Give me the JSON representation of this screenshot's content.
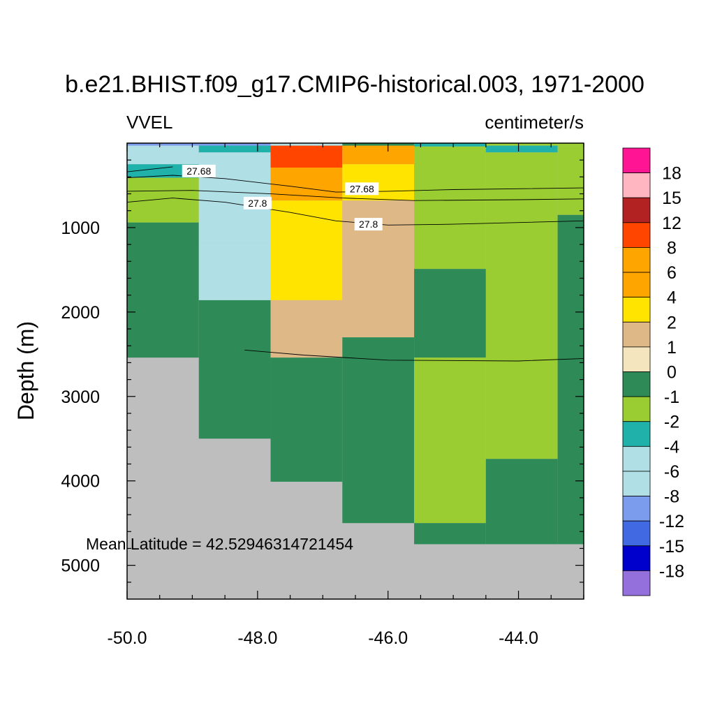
{
  "chart_data": {
    "type": "heatmap",
    "title": "b.e21.BHIST.f09_g17.CMIP6-historical.003, 1971-2000",
    "variable": "VVEL",
    "units": "centimeter/s",
    "xlabel": "",
    "ylabel": "Depth (m)",
    "xlim": [
      -50.0,
      -43.0
    ],
    "ylim": [
      0,
      5400
    ],
    "y_reversed": true,
    "xticks": [
      -50.0,
      -48.0,
      -46.0,
      -44.0
    ],
    "xtick_labels": [
      "-50.0",
      "-48.0",
      "-46.0",
      "-44.0"
    ],
    "yticks": [
      1000,
      2000,
      3000,
      4000,
      5000
    ],
    "ytick_labels": [
      "1000",
      "2000",
      "3000",
      "4000",
      "5000"
    ],
    "annotation": "Mean Latitude = 42.52946314721454",
    "missing_color": "#bebebe",
    "colorbar": {
      "labels": [
        "18",
        "15",
        "12",
        "8",
        "6",
        "4",
        "2",
        "1",
        "0",
        "-1",
        "-2",
        "-4",
        "-6",
        "-8",
        "-12",
        "-15",
        "-18"
      ],
      "colors": [
        "#ff1493",
        "#ffb6c1",
        "#b22222",
        "#ff4500",
        "#ffa500",
        "#ffa500",
        "#ffe400",
        "#deb887",
        "#f5e5be",
        "#2e8b57",
        "#9acd32",
        "#20b2aa",
        "#b0dfe6",
        "#b0dfe6",
        "#7b9ced",
        "#4169e1",
        "#0000cd",
        "#9370db"
      ]
    },
    "columns": [
      {
        "x0": -50.0,
        "x1": -48.9,
        "cells": [
          {
            "d0": 0,
            "d1": 30,
            "value": -8
          },
          {
            "d0": 30,
            "d1": 250,
            "value": -4
          },
          {
            "d0": 250,
            "d1": 410,
            "value": -2
          },
          {
            "d0": 410,
            "d1": 940,
            "value": -1
          },
          {
            "d0": 940,
            "d1": 2540,
            "value": 0
          }
        ]
      },
      {
        "x0": -48.9,
        "x1": -47.8,
        "cells": [
          {
            "d0": 0,
            "d1": 30,
            "value": -8
          },
          {
            "d0": 30,
            "d1": 110,
            "value": -2
          },
          {
            "d0": 110,
            "d1": 1180,
            "value": -6
          },
          {
            "d0": 1180,
            "d1": 1860,
            "value": -4
          },
          {
            "d0": 1860,
            "d1": 3500,
            "value": 0
          }
        ]
      },
      {
        "x0": -47.8,
        "x1": -46.7,
        "cells": [
          {
            "d0": 0,
            "d1": 30,
            "value": -4
          },
          {
            "d0": 30,
            "d1": 290,
            "value": 12
          },
          {
            "d0": 290,
            "d1": 680,
            "value": 8
          },
          {
            "d0": 680,
            "d1": 1860,
            "value": 4
          },
          {
            "d0": 1860,
            "d1": 2540,
            "value": 2
          },
          {
            "d0": 2540,
            "d1": 4010,
            "value": 0
          }
        ]
      },
      {
        "x0": -46.7,
        "x1": -45.6,
        "cells": [
          {
            "d0": 0,
            "d1": 30,
            "value": 0
          },
          {
            "d0": 30,
            "d1": 250,
            "value": 8
          },
          {
            "d0": 250,
            "d1": 680,
            "value": 4
          },
          {
            "d0": 680,
            "d1": 2300,
            "value": 2
          },
          {
            "d0": 2300,
            "d1": 4500,
            "value": 0
          }
        ]
      },
      {
        "x0": -45.6,
        "x1": -44.5,
        "cells": [
          {
            "d0": 0,
            "d1": 40,
            "value": -2
          },
          {
            "d0": 40,
            "d1": 1490,
            "value": -1
          },
          {
            "d0": 1490,
            "d1": 2540,
            "value": 0
          },
          {
            "d0": 2540,
            "d1": 4500,
            "value": -1
          },
          {
            "d0": 4500,
            "d1": 4750,
            "value": 0
          }
        ]
      },
      {
        "x0": -44.5,
        "x1": -43.4,
        "cells": [
          {
            "d0": 0,
            "d1": 30,
            "value": -1
          },
          {
            "d0": 30,
            "d1": 110,
            "value": -2
          },
          {
            "d0": 110,
            "d1": 3740,
            "value": -1
          },
          {
            "d0": 3740,
            "d1": 4750,
            "value": 0
          }
        ]
      },
      {
        "x0": -43.4,
        "x1": -43.0,
        "cells": [
          {
            "d0": 0,
            "d1": 30,
            "value": -1
          },
          {
            "d0": 30,
            "d1": 850,
            "value": -1
          },
          {
            "d0": 850,
            "d1": 4750,
            "value": 0
          }
        ]
      }
    ],
    "contours": [
      {
        "level": "27.68",
        "points": [
          [
            -50.0,
            410
          ],
          [
            -49.3,
            380
          ],
          [
            -48.5,
            420
          ],
          [
            -47.5,
            510
          ],
          [
            -46.8,
            580
          ],
          [
            -46.0,
            570
          ],
          [
            -45.0,
            550
          ],
          [
            -43.0,
            530
          ]
        ],
        "labels": [
          {
            "x": -48.9,
            "y": 330
          },
          {
            "x": -46.4,
            "y": 540
          }
        ]
      },
      {
        "level": "27.8",
        "points": [
          [
            -50.0,
            700
          ],
          [
            -49.3,
            650
          ],
          [
            -48.5,
            700
          ],
          [
            -47.5,
            820
          ],
          [
            -46.8,
            920
          ],
          [
            -46.0,
            970
          ],
          [
            -45.0,
            960
          ],
          [
            -43.0,
            920
          ]
        ],
        "labels": [
          {
            "x": -48.0,
            "y": 710
          },
          {
            "x": -46.3,
            "y": 960
          }
        ]
      },
      {
        "level": "",
        "points": [
          [
            -50.0,
            340
          ],
          [
            -49.3,
            280
          ]
        ],
        "labels": []
      },
      {
        "level": "",
        "points": [
          [
            -48.2,
            2450
          ],
          [
            -47.3,
            2510
          ],
          [
            -46.0,
            2570
          ],
          [
            -44.0,
            2580
          ],
          [
            -43.0,
            2550
          ]
        ],
        "labels": []
      },
      {
        "level": "",
        "points": [
          [
            -50.0,
            570
          ],
          [
            -49.0,
            560
          ],
          [
            -47.8,
            600
          ],
          [
            -46.7,
            650
          ],
          [
            -45.6,
            680
          ],
          [
            -44.0,
            670
          ],
          [
            -43.0,
            660
          ]
        ],
        "labels": []
      }
    ]
  }
}
